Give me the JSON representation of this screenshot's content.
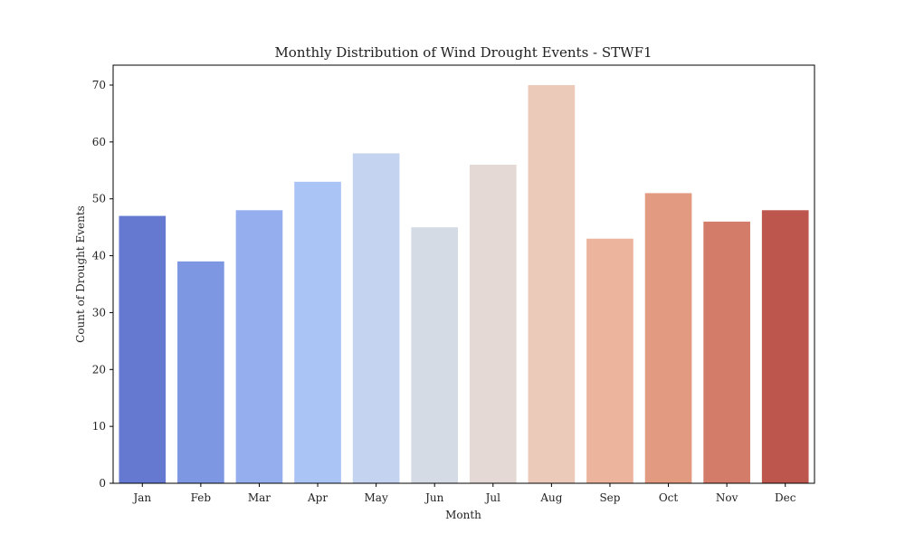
{
  "chart_data": {
    "type": "bar",
    "title": "Monthly Distribution of Wind Drought Events - STWF1",
    "xlabel": "Month",
    "ylabel": "Count of Drought Events",
    "categories": [
      "Jan",
      "Feb",
      "Mar",
      "Apr",
      "May",
      "Jun",
      "Jul",
      "Aug",
      "Sep",
      "Oct",
      "Nov",
      "Dec"
    ],
    "values": [
      47,
      39,
      48,
      53,
      58,
      45,
      56,
      70,
      43,
      51,
      46,
      48
    ],
    "colors": [
      "#6479cf",
      "#7d97e3",
      "#95afee",
      "#abc4f6",
      "#c4d3ef",
      "#d5dbe4",
      "#e4d9d4",
      "#ebcab9",
      "#ecb49c",
      "#e29b81",
      "#d47c6a",
      "#bd574e"
    ],
    "ylim": [
      0,
      73.5
    ],
    "yticks": [
      0,
      10,
      20,
      30,
      40,
      50,
      60,
      70
    ],
    "grid": false,
    "legend": "none"
  }
}
